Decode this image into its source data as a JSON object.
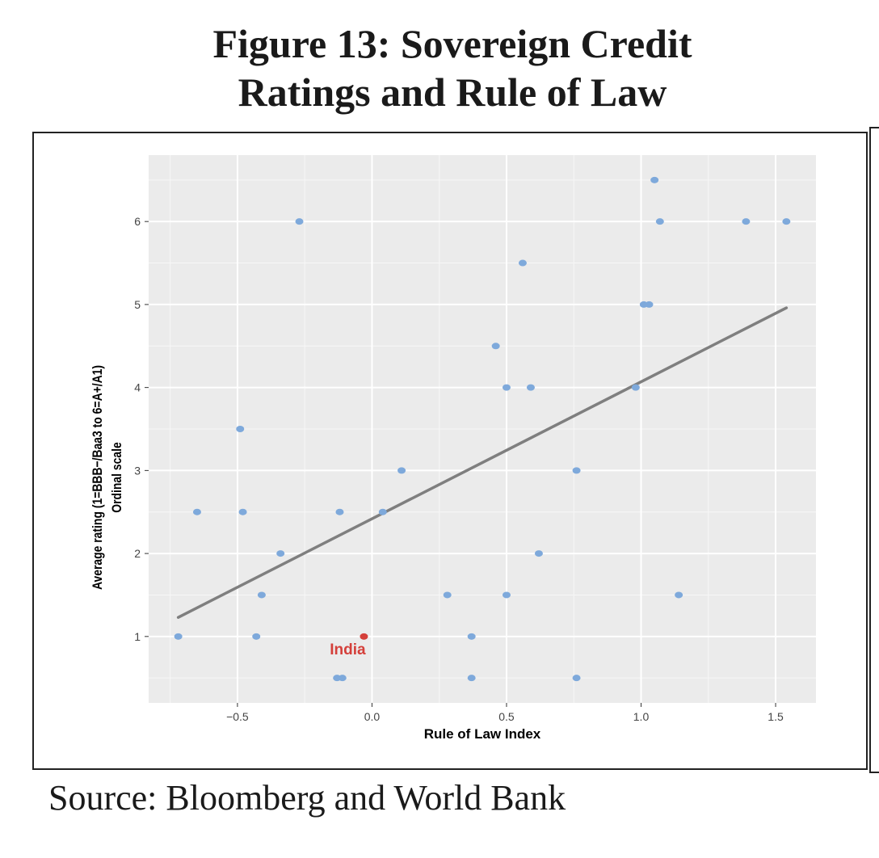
{
  "figure": {
    "title_line1": "Figure 13: Sovereign Credit",
    "title_line2": "Ratings and Rule of Law",
    "source": "Source: Bloomberg and World Bank"
  },
  "chart_data": {
    "type": "scatter",
    "xlabel": "Rule of Law Index",
    "ylabel_line1": "Average rating (1=BBB−/Baa3 to 6=A+/A1)",
    "ylabel_line2": "Ordinal scale",
    "xlim": [
      -0.83,
      1.65
    ],
    "ylim": [
      0.2,
      6.8
    ],
    "xticks": [
      -0.5,
      0.0,
      0.5,
      1.0,
      1.5
    ],
    "xtick_labels": [
      "−0.5",
      "0.0",
      "0.5",
      "1.0",
      "1.5"
    ],
    "yticks": [
      1,
      2,
      3,
      4,
      5,
      6
    ],
    "ytick_labels": [
      "1",
      "2",
      "3",
      "4",
      "5",
      "6"
    ],
    "grid": true,
    "background_color": "#ebebeb",
    "point_color": "#7ea9db",
    "highlight_color": "#d43f3a",
    "trend_color": "#7f7f7f",
    "points": [
      {
        "x": -0.72,
        "y": 1.0
      },
      {
        "x": -0.65,
        "y": 2.5
      },
      {
        "x": -0.49,
        "y": 3.5
      },
      {
        "x": -0.48,
        "y": 2.5
      },
      {
        "x": -0.43,
        "y": 1.0
      },
      {
        "x": -0.41,
        "y": 1.5
      },
      {
        "x": -0.34,
        "y": 2.0
      },
      {
        "x": -0.27,
        "y": 6.0
      },
      {
        "x": -0.13,
        "y": 0.5
      },
      {
        "x": -0.12,
        "y": 2.5
      },
      {
        "x": -0.11,
        "y": 0.5
      },
      {
        "x": 0.04,
        "y": 2.5
      },
      {
        "x": 0.11,
        "y": 3.0
      },
      {
        "x": 0.28,
        "y": 1.5
      },
      {
        "x": 0.37,
        "y": 1.0
      },
      {
        "x": 0.37,
        "y": 0.5
      },
      {
        "x": 0.46,
        "y": 4.5
      },
      {
        "x": 0.5,
        "y": 4.0
      },
      {
        "x": 0.5,
        "y": 1.5
      },
      {
        "x": 0.56,
        "y": 5.5
      },
      {
        "x": 0.59,
        "y": 4.0
      },
      {
        "x": 0.62,
        "y": 2.0
      },
      {
        "x": 0.76,
        "y": 3.0
      },
      {
        "x": 0.76,
        "y": 0.5
      },
      {
        "x": 0.98,
        "y": 4.0
      },
      {
        "x": 1.01,
        "y": 5.0
      },
      {
        "x": 1.03,
        "y": 5.0
      },
      {
        "x": 1.05,
        "y": 6.5
      },
      {
        "x": 1.07,
        "y": 6.0
      },
      {
        "x": 1.14,
        "y": 1.5
      },
      {
        "x": 1.39,
        "y": 6.0
      },
      {
        "x": 1.54,
        "y": 6.0
      }
    ],
    "highlight": {
      "label": "India",
      "x": -0.03,
      "y": 1.0
    },
    "trend_line": {
      "x": [
        -0.72,
        1.54
      ],
      "y": [
        1.23,
        4.96
      ]
    }
  }
}
